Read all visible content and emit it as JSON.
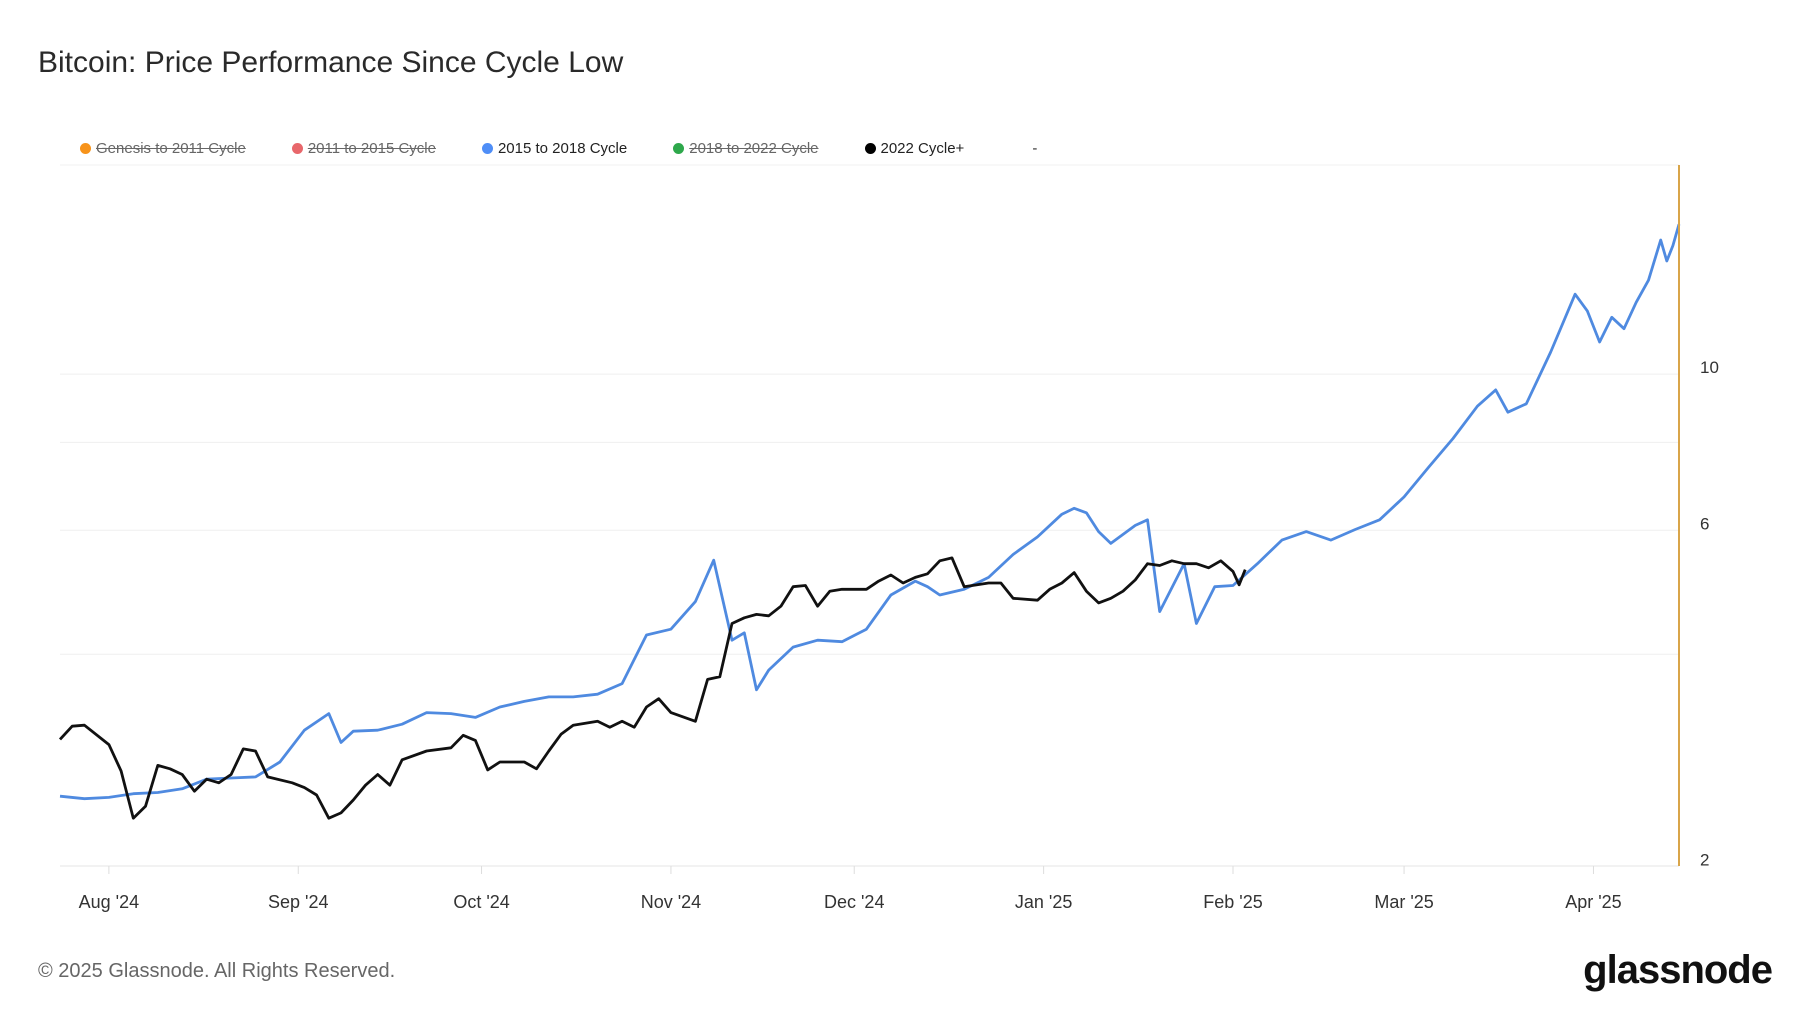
{
  "header": {
    "title": "Bitcoin: Price Performance Since Cycle Low"
  },
  "legend": {
    "items": [
      {
        "label": "Genesis to 2011 Cycle",
        "color": "#f7931a",
        "enabled": false
      },
      {
        "label": "2011 to 2015 Cycle",
        "color": "#e8676b",
        "enabled": false
      },
      {
        "label": "2015 to 2018 Cycle",
        "color": "#4f8ef7",
        "enabled": true
      },
      {
        "label": "2018 to 2022 Cycle",
        "color": "#2ea84b",
        "enabled": false
      },
      {
        "label": "2022 Cycle+",
        "color": "#000000",
        "enabled": true
      }
    ],
    "extra": "-"
  },
  "footer": {
    "copyright": "© 2025 Glassnode. All Rights Reserved.",
    "logo": "glassnode"
  },
  "chart_data": {
    "type": "line",
    "title": "Bitcoin: Price Performance Since Cycle Low",
    "yscale": "log",
    "ylim": [
      1.95,
      19.3
    ],
    "xlim": [
      "2024-07-24",
      "2025-04-15"
    ],
    "y_ticks": [
      2,
      6,
      10
    ],
    "y_gridlines": [
      4,
      6,
      8,
      10
    ],
    "x_ticks": [
      {
        "date": "2024-08-01",
        "label": "Aug '24"
      },
      {
        "date": "2024-09-01",
        "label": "Sep '24"
      },
      {
        "date": "2024-10-01",
        "label": "Oct '24"
      },
      {
        "date": "2024-11-01",
        "label": "Nov '24"
      },
      {
        "date": "2024-12-01",
        "label": "Dec '24"
      },
      {
        "date": "2025-01-01",
        "label": "Jan '25"
      },
      {
        "date": "2025-02-01",
        "label": "Feb '25"
      },
      {
        "date": "2025-03-01",
        "label": "Mar '25"
      },
      {
        "date": "2025-04-01",
        "label": "Apr '25"
      }
    ],
    "grid": true,
    "legend_position": "top-left",
    "marker_line_color": "#d9a54a",
    "series": [
      {
        "name": "2015 to 2018 Cycle",
        "color": "#4f8ae0",
        "points": [
          [
            "2024-07-24",
            2.45
          ],
          [
            "2024-07-28",
            2.43
          ],
          [
            "2024-08-01",
            2.44
          ],
          [
            "2024-08-05",
            2.47
          ],
          [
            "2024-08-09",
            2.48
          ],
          [
            "2024-08-13",
            2.51
          ],
          [
            "2024-08-17",
            2.59
          ],
          [
            "2024-08-21",
            2.6
          ],
          [
            "2024-08-25",
            2.61
          ],
          [
            "2024-08-29",
            2.74
          ],
          [
            "2024-09-02",
            3.04
          ],
          [
            "2024-09-06",
            3.21
          ],
          [
            "2024-09-08",
            2.92
          ],
          [
            "2024-09-10",
            3.03
          ],
          [
            "2024-09-14",
            3.04
          ],
          [
            "2024-09-18",
            3.1
          ],
          [
            "2024-09-22",
            3.22
          ],
          [
            "2024-09-26",
            3.21
          ],
          [
            "2024-09-30",
            3.17
          ],
          [
            "2024-10-04",
            3.28
          ],
          [
            "2024-10-08",
            3.34
          ],
          [
            "2024-10-12",
            3.39
          ],
          [
            "2024-10-16",
            3.39
          ],
          [
            "2024-10-20",
            3.42
          ],
          [
            "2024-10-24",
            3.54
          ],
          [
            "2024-10-28",
            4.15
          ],
          [
            "2024-11-01",
            4.23
          ],
          [
            "2024-11-05",
            4.63
          ],
          [
            "2024-11-08",
            5.3
          ],
          [
            "2024-11-11",
            4.08
          ],
          [
            "2024-11-13",
            4.18
          ],
          [
            "2024-11-15",
            3.47
          ],
          [
            "2024-11-17",
            3.7
          ],
          [
            "2024-11-21",
            3.99
          ],
          [
            "2024-11-25",
            4.08
          ],
          [
            "2024-11-29",
            4.06
          ],
          [
            "2024-12-03",
            4.23
          ],
          [
            "2024-12-07",
            4.73
          ],
          [
            "2024-12-11",
            4.95
          ],
          [
            "2024-12-13",
            4.86
          ],
          [
            "2024-12-15",
            4.73
          ],
          [
            "2024-12-19",
            4.82
          ],
          [
            "2024-12-23",
            5.01
          ],
          [
            "2024-12-27",
            5.4
          ],
          [
            "2024-12-31",
            5.72
          ],
          [
            "2025-01-04",
            6.16
          ],
          [
            "2025-01-06",
            6.28
          ],
          [
            "2025-01-08",
            6.19
          ],
          [
            "2025-01-10",
            5.82
          ],
          [
            "2025-01-12",
            5.6
          ],
          [
            "2025-01-16",
            5.94
          ],
          [
            "2025-01-18",
            6.05
          ],
          [
            "2025-01-20",
            4.48
          ],
          [
            "2025-01-24",
            5.24
          ],
          [
            "2025-01-26",
            4.31
          ],
          [
            "2025-01-29",
            4.86
          ],
          [
            "2025-02-01",
            4.88
          ],
          [
            "2025-02-05",
            5.24
          ],
          [
            "2025-02-09",
            5.66
          ],
          [
            "2025-02-13",
            5.82
          ],
          [
            "2025-02-17",
            5.66
          ],
          [
            "2025-02-21",
            5.86
          ],
          [
            "2025-02-25",
            6.05
          ],
          [
            "2025-03-01",
            6.52
          ],
          [
            "2025-03-05",
            7.18
          ],
          [
            "2025-03-09",
            7.89
          ],
          [
            "2025-03-13",
            8.77
          ],
          [
            "2025-03-16",
            9.25
          ],
          [
            "2025-03-18",
            8.6
          ],
          [
            "2025-03-21",
            8.84
          ],
          [
            "2025-03-25",
            10.47
          ],
          [
            "2025-03-29",
            12.65
          ],
          [
            "2025-03-31",
            11.97
          ],
          [
            "2025-04-02",
            10.82
          ],
          [
            "2025-04-04",
            11.73
          ],
          [
            "2025-04-06",
            11.3
          ],
          [
            "2025-04-08",
            12.32
          ],
          [
            "2025-04-10",
            13.24
          ],
          [
            "2025-04-12",
            15.1
          ],
          [
            "2025-04-13",
            14.1
          ],
          [
            "2025-04-14",
            14.83
          ],
          [
            "2025-04-15",
            15.9
          ]
        ]
      },
      {
        "name": "2022 Cycle+",
        "color": "#111111",
        "points": [
          [
            "2024-07-24",
            2.95
          ],
          [
            "2024-07-26",
            3.08
          ],
          [
            "2024-07-28",
            3.09
          ],
          [
            "2024-08-01",
            2.9
          ],
          [
            "2024-08-03",
            2.66
          ],
          [
            "2024-08-05",
            2.28
          ],
          [
            "2024-08-07",
            2.37
          ],
          [
            "2024-08-09",
            2.71
          ],
          [
            "2024-08-11",
            2.68
          ],
          [
            "2024-08-13",
            2.63
          ],
          [
            "2024-08-15",
            2.49
          ],
          [
            "2024-08-17",
            2.59
          ],
          [
            "2024-08-19",
            2.56
          ],
          [
            "2024-08-21",
            2.63
          ],
          [
            "2024-08-23",
            2.86
          ],
          [
            "2024-08-25",
            2.84
          ],
          [
            "2024-08-27",
            2.61
          ],
          [
            "2024-08-31",
            2.56
          ],
          [
            "2024-09-02",
            2.52
          ],
          [
            "2024-09-04",
            2.46
          ],
          [
            "2024-09-06",
            2.28
          ],
          [
            "2024-09-08",
            2.32
          ],
          [
            "2024-09-10",
            2.42
          ],
          [
            "2024-09-12",
            2.54
          ],
          [
            "2024-09-14",
            2.63
          ],
          [
            "2024-09-16",
            2.54
          ],
          [
            "2024-09-18",
            2.76
          ],
          [
            "2024-09-22",
            2.84
          ],
          [
            "2024-09-26",
            2.87
          ],
          [
            "2024-09-28",
            2.99
          ],
          [
            "2024-09-30",
            2.94
          ],
          [
            "2024-10-02",
            2.67
          ],
          [
            "2024-10-04",
            2.74
          ],
          [
            "2024-10-08",
            2.74
          ],
          [
            "2024-10-10",
            2.68
          ],
          [
            "2024-10-12",
            2.84
          ],
          [
            "2024-10-14",
            3.0
          ],
          [
            "2024-10-16",
            3.09
          ],
          [
            "2024-10-20",
            3.13
          ],
          [
            "2024-10-22",
            3.07
          ],
          [
            "2024-10-24",
            3.13
          ],
          [
            "2024-10-26",
            3.07
          ],
          [
            "2024-10-28",
            3.28
          ],
          [
            "2024-10-30",
            3.37
          ],
          [
            "2024-11-01",
            3.22
          ],
          [
            "2024-11-05",
            3.13
          ],
          [
            "2024-11-07",
            3.59
          ],
          [
            "2024-11-09",
            3.62
          ],
          [
            "2024-11-11",
            4.31
          ],
          [
            "2024-11-13",
            4.39
          ],
          [
            "2024-11-15",
            4.44
          ],
          [
            "2024-11-17",
            4.42
          ],
          [
            "2024-11-19",
            4.56
          ],
          [
            "2024-11-21",
            4.86
          ],
          [
            "2024-11-23",
            4.88
          ],
          [
            "2024-11-25",
            4.56
          ],
          [
            "2024-11-27",
            4.79
          ],
          [
            "2024-11-29",
            4.82
          ],
          [
            "2024-12-03",
            4.82
          ],
          [
            "2024-12-05",
            4.95
          ],
          [
            "2024-12-07",
            5.05
          ],
          [
            "2024-12-09",
            4.92
          ],
          [
            "2024-12-11",
            5.01
          ],
          [
            "2024-12-13",
            5.07
          ],
          [
            "2024-12-15",
            5.29
          ],
          [
            "2024-12-17",
            5.34
          ],
          [
            "2024-12-19",
            4.86
          ],
          [
            "2024-12-23",
            4.92
          ],
          [
            "2024-12-25",
            4.92
          ],
          [
            "2024-12-27",
            4.68
          ],
          [
            "2024-12-31",
            4.65
          ],
          [
            "2025-01-02",
            4.82
          ],
          [
            "2025-01-04",
            4.92
          ],
          [
            "2025-01-06",
            5.09
          ],
          [
            "2025-01-08",
            4.79
          ],
          [
            "2025-01-10",
            4.61
          ],
          [
            "2025-01-12",
            4.68
          ],
          [
            "2025-01-14",
            4.79
          ],
          [
            "2025-01-16",
            4.97
          ],
          [
            "2025-01-18",
            5.24
          ],
          [
            "2025-01-20",
            5.21
          ],
          [
            "2025-01-22",
            5.29
          ],
          [
            "2025-01-24",
            5.24
          ],
          [
            "2025-01-26",
            5.24
          ],
          [
            "2025-01-28",
            5.17
          ],
          [
            "2025-01-30",
            5.29
          ],
          [
            "2025-02-01",
            5.11
          ],
          [
            "2025-02-02",
            4.89
          ],
          [
            "2025-02-03",
            5.14
          ]
        ]
      }
    ]
  }
}
